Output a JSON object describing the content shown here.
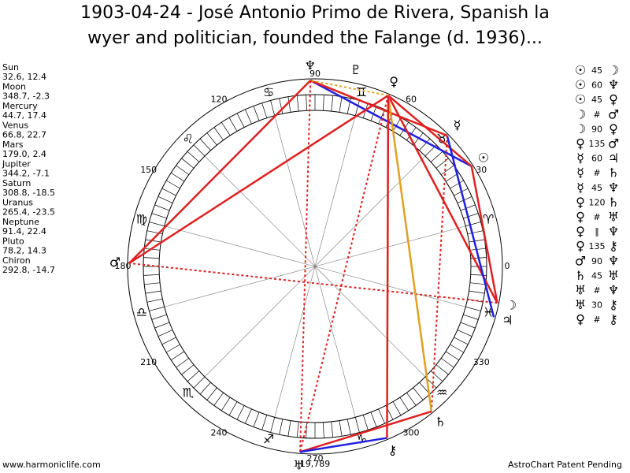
{
  "title_lines": [
    "1903-04-24 - José Antonio Primo de Rivera, Spanish la",
    "wyer and politician, founded the Falange (d. 1936)..."
  ],
  "planets": [
    {
      "name": "Sun",
      "coords": "32.6, 12.4",
      "glyph": "☉"
    },
    {
      "name": "Moon",
      "coords": "348.7, -2.3",
      "glyph": "☽"
    },
    {
      "name": "Mercury",
      "coords": "44.7, 17.4",
      "glyph": "☿"
    },
    {
      "name": "Venus",
      "coords": "66.8, 22.7",
      "glyph": "♀"
    },
    {
      "name": "Mars",
      "coords": "179.0, 2.4",
      "glyph": "♂"
    },
    {
      "name": "Jupiter",
      "coords": "344.2, -7.1",
      "glyph": "♃"
    },
    {
      "name": "Saturn",
      "coords": "308.8, -18.5",
      "glyph": "♄"
    },
    {
      "name": "Uranus",
      "coords": "265.4, -23.5",
      "glyph": "♅"
    },
    {
      "name": "Neptune",
      "coords": "91.4, 22.4",
      "glyph": "♆"
    },
    {
      "name": "Pluto",
      "coords": "78.2, 14.3",
      "glyph": "♇"
    },
    {
      "name": "Chiron",
      "coords": "292.8, -14.7",
      "glyph": "⚷"
    }
  ],
  "signs": [
    "♈",
    "♉",
    "♊",
    "♋",
    "♌",
    "♍",
    "♎",
    "♏",
    "♐",
    "♑",
    "♒",
    "♓"
  ],
  "degree_labels": [
    0,
    30,
    60,
    90,
    120,
    150,
    180,
    210,
    240,
    270,
    300,
    330
  ],
  "aspects": [
    {
      "a": "☉",
      "aspect": "45",
      "b": "☽",
      "color": "#e02020",
      "dashed": false
    },
    {
      "a": "☉",
      "aspect": "60",
      "b": "♆",
      "color": "#2020e0",
      "dashed": false
    },
    {
      "a": "☉",
      "aspect": "45",
      "b": "♀",
      "color": "#e02020",
      "dashed": false
    },
    {
      "a": "☽",
      "aspect": "#",
      "b": "♂",
      "color": "#e02020",
      "dashed": true
    },
    {
      "a": "☽",
      "aspect": "90",
      "b": "♀",
      "color": "#e02020",
      "dashed": false
    },
    {
      "a": "♀",
      "aspect": "135",
      "b": "♂",
      "color": "#e02020",
      "dashed": false
    },
    {
      "a": "☿",
      "aspect": "60",
      "b": "♃",
      "color": "#2020e0",
      "dashed": false
    },
    {
      "a": "☿",
      "aspect": "#",
      "b": "♄",
      "color": "#e02020",
      "dashed": true
    },
    {
      "a": "☿",
      "aspect": "45",
      "b": "♆",
      "color": "#e02020",
      "dashed": false
    },
    {
      "a": "♀",
      "aspect": "120",
      "b": "♄",
      "color": "#e0a020",
      "dashed": false
    },
    {
      "a": "♀",
      "aspect": "#",
      "b": "♅",
      "color": "#e02020",
      "dashed": true
    },
    {
      "a": "♀",
      "aspect": "∥",
      "b": "♆",
      "color": "#e0a020",
      "dashed": true
    },
    {
      "a": "♀",
      "aspect": "135",
      "b": "⚷",
      "color": "#e02020",
      "dashed": false
    },
    {
      "a": "♂",
      "aspect": "90",
      "b": "♆",
      "color": "#e02020",
      "dashed": false
    },
    {
      "a": "♄",
      "aspect": "45",
      "b": "♅",
      "color": "#e02020",
      "dashed": false
    },
    {
      "a": "♅",
      "aspect": "#",
      "b": "♆",
      "color": "#e02020",
      "dashed": true
    },
    {
      "a": "♅",
      "aspect": "30",
      "b": "⚷",
      "color": "#2020e0",
      "dashed": false
    },
    {
      "a": "♀",
      "aspect": "#",
      "b": "⚷",
      "color": "#e02020",
      "dashed": true
    }
  ],
  "center_note": "19,789",
  "footer_left": "www.harmoniclife.com",
  "footer_right": "AstroChart Patent Pending"
}
